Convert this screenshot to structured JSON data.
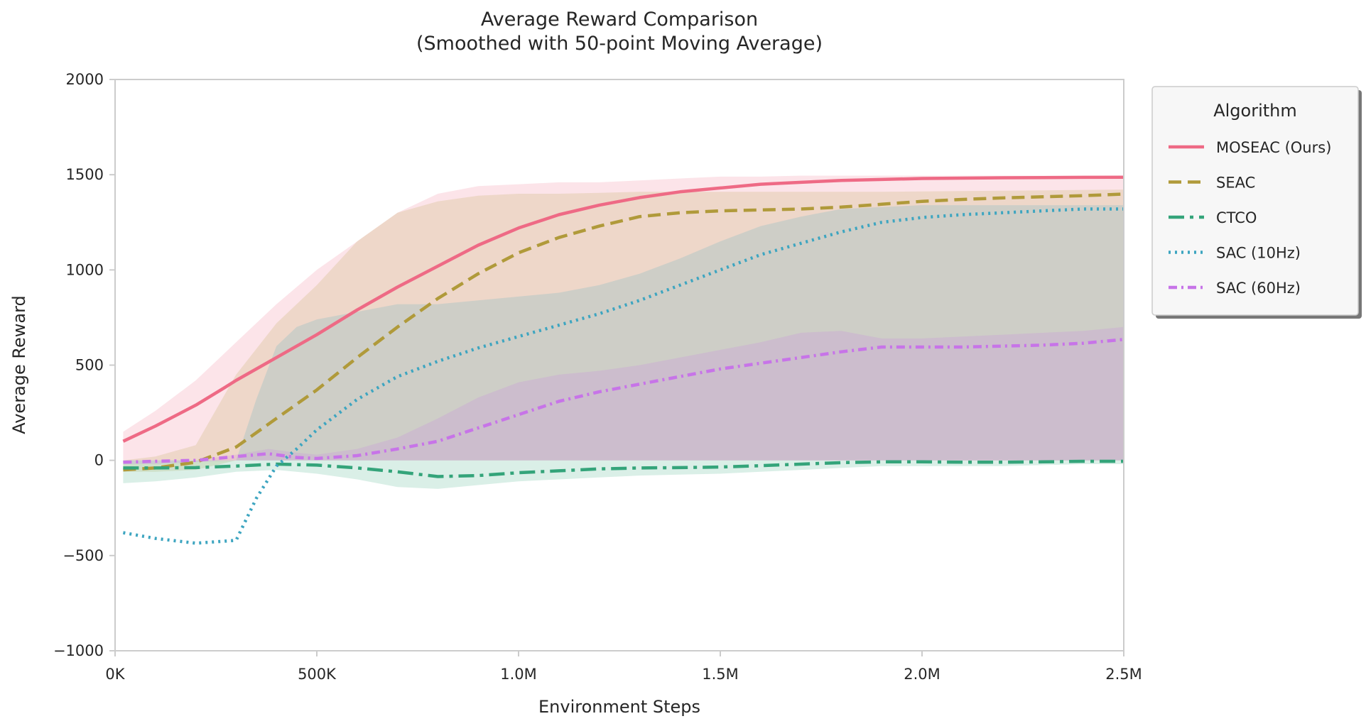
{
  "chart_data": {
    "type": "line",
    "title": "Average Reward Comparison",
    "subtitle": "(Smoothed with 50-point Moving Average)",
    "xlabel": "Environment Steps",
    "ylabel": "Average Reward",
    "xlim": [
      0,
      2500000
    ],
    "ylim": [
      -1000,
      2000
    ],
    "x_ticks": [
      0,
      500000,
      1000000,
      1500000,
      2000000,
      2500000
    ],
    "x_tick_labels": [
      "0K",
      "500K",
      "1.0M",
      "1.5M",
      "2.0M",
      "2.5M"
    ],
    "y_ticks": [
      -1000,
      -500,
      0,
      500,
      1000,
      1500,
      2000
    ],
    "y_tick_labels": [
      "−1000",
      "−500",
      "0",
      "500",
      "1000",
      "1500",
      "2000"
    ],
    "grid": false,
    "legend": {
      "title": "Algorithm",
      "placement": "outside-top-right"
    },
    "series": [
      {
        "name": "MOSEAC (Ours)",
        "color": "#ee6a85",
        "dash": "solid",
        "x": [
          20000,
          100000,
          200000,
          270000,
          300000,
          400000,
          500000,
          600000,
          700000,
          800000,
          900000,
          1000000,
          1100000,
          1200000,
          1300000,
          1400000,
          1500000,
          1600000,
          1700000,
          1800000,
          1900000,
          2000000,
          2100000,
          2200000,
          2300000,
          2400000,
          2500000
        ],
        "y": [
          100,
          180,
          290,
          380,
          420,
          540,
          660,
          790,
          910,
          1020,
          1130,
          1220,
          1290,
          1340,
          1380,
          1410,
          1430,
          1450,
          1460,
          1470,
          1475,
          1480,
          1482,
          1484,
          1485,
          1486,
          1487
        ],
        "band_upper": [
          150,
          260,
          420,
          560,
          620,
          820,
          1000,
          1150,
          1300,
          1400,
          1440,
          1450,
          1460,
          1460,
          1470,
          1480,
          1490,
          1490,
          1495,
          1495,
          1495,
          1495,
          1495,
          1495,
          1495,
          1495,
          1495
        ],
        "band_lower": [
          0,
          0,
          0,
          0,
          0,
          0,
          0,
          0,
          0,
          0,
          0,
          0,
          0,
          0,
          0,
          0,
          0,
          0,
          0,
          0,
          0,
          0,
          0,
          0,
          0,
          0,
          0
        ]
      },
      {
        "name": "SEAC",
        "color": "#b09a3a",
        "dash": "dashed",
        "x": [
          20000,
          100000,
          200000,
          300000,
          400000,
          500000,
          600000,
          700000,
          800000,
          900000,
          1000000,
          1100000,
          1200000,
          1300000,
          1400000,
          1500000,
          1600000,
          1700000,
          1800000,
          1900000,
          2000000,
          2100000,
          2200000,
          2300000,
          2400000,
          2500000
        ],
        "y": [
          -50,
          -40,
          -10,
          70,
          220,
          370,
          540,
          700,
          850,
          980,
          1090,
          1170,
          1230,
          1280,
          1300,
          1310,
          1315,
          1320,
          1330,
          1345,
          1360,
          1370,
          1378,
          1384,
          1390,
          1398
        ],
        "band_upper": [
          0,
          20,
          80,
          450,
          720,
          920,
          1150,
          1300,
          1360,
          1390,
          1400,
          1400,
          1405,
          1410,
          1410,
          1410,
          1410,
          1410,
          1410,
          1410,
          1412,
          1414,
          1416,
          1418,
          1420,
          1422
        ],
        "band_lower": [
          -60,
          -60,
          -50,
          0,
          0,
          0,
          0,
          0,
          0,
          0,
          0,
          0,
          0,
          0,
          0,
          0,
          0,
          0,
          0,
          0,
          0,
          0,
          0,
          0,
          0,
          0
        ]
      },
      {
        "name": "CTCO",
        "color": "#34a47a",
        "dash": "dashdot",
        "x": [
          20000,
          100000,
          200000,
          300000,
          400000,
          500000,
          600000,
          700000,
          800000,
          900000,
          1000000,
          1100000,
          1200000,
          1300000,
          1400000,
          1500000,
          1600000,
          1700000,
          1800000,
          1900000,
          2000000,
          2100000,
          2200000,
          2300000,
          2400000,
          2500000
        ],
        "y": [
          -40,
          -40,
          -38,
          -30,
          -20,
          -25,
          -40,
          -60,
          -85,
          -80,
          -65,
          -55,
          -45,
          -40,
          -38,
          -35,
          -28,
          -20,
          -12,
          -8,
          -8,
          -10,
          -10,
          -8,
          -5,
          -5
        ],
        "band_upper": [
          0,
          0,
          0,
          0,
          0,
          0,
          0,
          0,
          0,
          0,
          0,
          0,
          0,
          0,
          0,
          0,
          0,
          0,
          0,
          0,
          0,
          0,
          0,
          0,
          0,
          0
        ],
        "band_lower": [
          -120,
          -110,
          -90,
          -60,
          -50,
          -70,
          -100,
          -140,
          -150,
          -130,
          -110,
          -100,
          -90,
          -80,
          -75,
          -70,
          -60,
          -50,
          -40,
          -30,
          -30,
          -30,
          -30,
          -25,
          -20,
          -20
        ]
      },
      {
        "name": "SAC (10Hz)",
        "color": "#3da5c0",
        "dash": "dotted",
        "x": [
          20000,
          100000,
          200000,
          300000,
          350000,
          400000,
          450000,
          500000,
          600000,
          700000,
          800000,
          900000,
          1000000,
          1100000,
          1200000,
          1300000,
          1400000,
          1500000,
          1600000,
          1700000,
          1800000,
          1900000,
          2000000,
          2100000,
          2200000,
          2300000,
          2400000,
          2500000
        ],
        "y": [
          -380,
          -410,
          -435,
          -420,
          -200,
          -30,
          60,
          160,
          320,
          440,
          520,
          590,
          650,
          710,
          770,
          840,
          920,
          1000,
          1080,
          1140,
          1200,
          1250,
          1275,
          1290,
          1300,
          1310,
          1320,
          1320
        ],
        "band_upper": [
          0,
          0,
          0,
          0,
          320,
          600,
          700,
          740,
          780,
          820,
          820,
          840,
          860,
          880,
          920,
          980,
          1060,
          1150,
          1230,
          1280,
          1320,
          1330,
          1340,
          1340,
          1340,
          1340,
          1340,
          1340
        ],
        "band_lower": [
          0,
          0,
          0,
          0,
          0,
          0,
          0,
          0,
          0,
          0,
          0,
          0,
          0,
          0,
          0,
          0,
          0,
          0,
          0,
          0,
          0,
          0,
          0,
          0,
          0,
          0,
          0,
          0
        ]
      },
      {
        "name": "SAC (60Hz)",
        "color": "#c774e8",
        "dash": "dashdotted",
        "x": [
          20000,
          100000,
          200000,
          300000,
          380000,
          450000,
          500000,
          600000,
          700000,
          800000,
          900000,
          1000000,
          1100000,
          1200000,
          1300000,
          1400000,
          1500000,
          1600000,
          1700000,
          1800000,
          1900000,
          2000000,
          2100000,
          2200000,
          2300000,
          2400000,
          2500000
        ],
        "y": [
          -10,
          -5,
          0,
          20,
          35,
          15,
          10,
          25,
          60,
          100,
          170,
          240,
          310,
          360,
          400,
          440,
          480,
          510,
          540,
          570,
          595,
          595,
          595,
          600,
          605,
          615,
          635
        ],
        "band_upper": [
          0,
          0,
          0,
          30,
          60,
          40,
          30,
          60,
          120,
          220,
          330,
          410,
          450,
          470,
          500,
          540,
          580,
          620,
          670,
          680,
          640,
          640,
          650,
          660,
          670,
          680,
          700
        ],
        "band_lower": [
          -20,
          -20,
          -10,
          0,
          0,
          0,
          0,
          0,
          0,
          0,
          0,
          0,
          0,
          0,
          0,
          0,
          0,
          0,
          0,
          0,
          0,
          0,
          0,
          0,
          0,
          0,
          0
        ]
      }
    ]
  }
}
